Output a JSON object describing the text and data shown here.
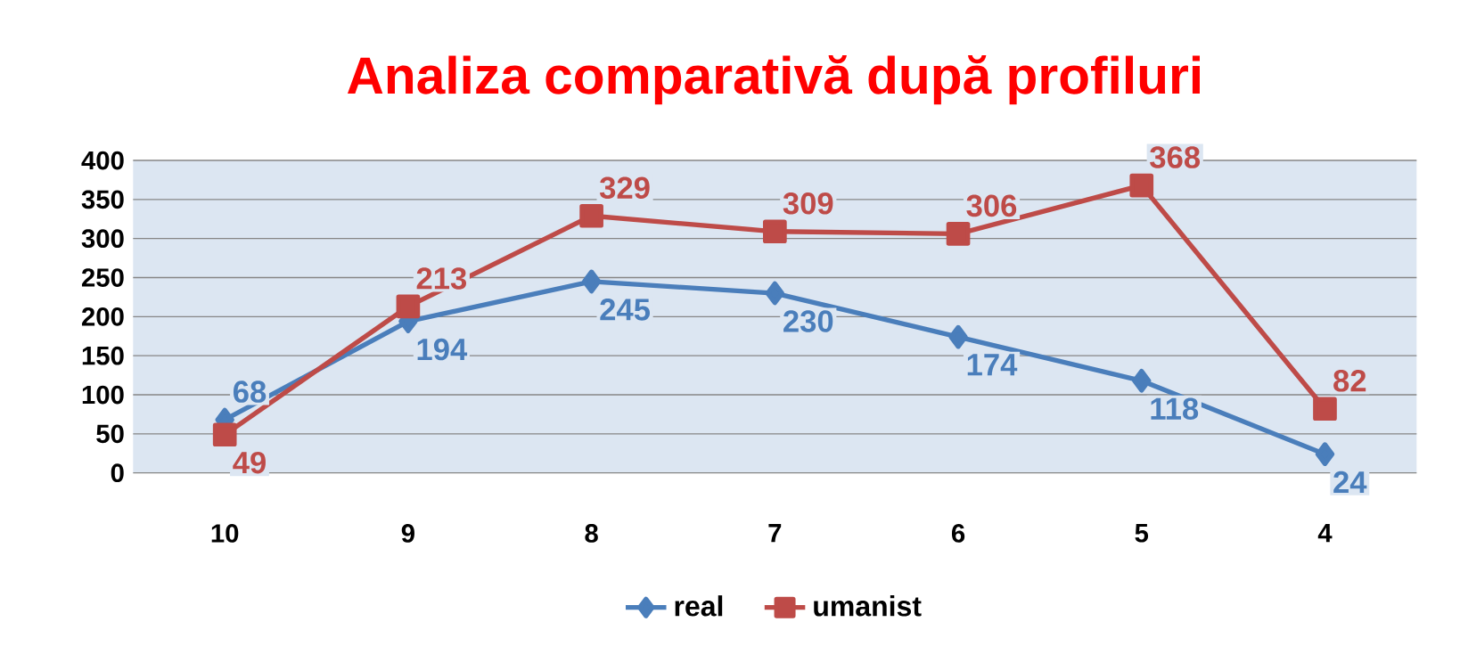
{
  "chart_data": {
    "type": "line",
    "title": "Analiza comparativă după profiluri",
    "categories": [
      "10",
      "9",
      "8",
      "7",
      "6",
      "5",
      "4"
    ],
    "series": [
      {
        "name": "real",
        "color": "#4a7ebb",
        "marker": "diamond",
        "values": [
          68,
          194,
          245,
          230,
          174,
          118,
          24
        ]
      },
      {
        "name": "umanist",
        "color": "#be4b48",
        "marker": "square",
        "values": [
          49,
          213,
          329,
          309,
          306,
          368,
          82
        ]
      }
    ],
    "ylim": [
      0,
      400
    ],
    "yticks": [
      0,
      50,
      100,
      150,
      200,
      250,
      300,
      350,
      400
    ],
    "grid": "y",
    "legend": "bottom",
    "data_labels": true
  }
}
